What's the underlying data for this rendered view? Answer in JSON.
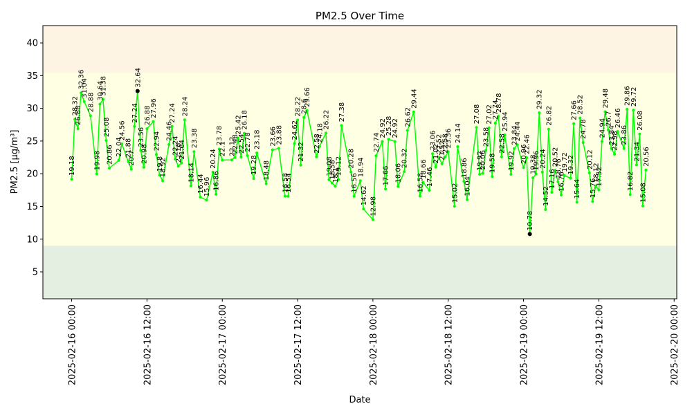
{
  "chart_data": {
    "type": "line",
    "title": "PM2.5 Over Time",
    "x_label": "Date",
    "y_label": "PM2.5 [µg/m³]",
    "x": [
      "2025-02-16 00:00",
      "2025-02-16 00:30",
      "2025-02-16 01:00",
      "2025-02-16 01:30",
      "2025-02-16 02:00",
      "2025-02-16 03:00",
      "2025-02-16 04:00",
      "2025-02-16 04:30",
      "2025-02-16 05:00",
      "2025-02-16 05:30",
      "2025-02-16 06:00",
      "2025-02-16 07:30",
      "2025-02-16 08:00",
      "2025-02-16 09:00",
      "2025-02-16 09:30",
      "2025-02-16 10:00",
      "2025-02-16 10:30",
      "2025-02-16 11:00",
      "2025-02-16 11:30",
      "2025-02-16 12:00",
      "2025-02-16 13:00",
      "2025-02-16 13:30",
      "2025-02-16 14:00",
      "2025-02-16 14:30",
      "2025-02-16 15:30",
      "2025-02-16 16:00",
      "2025-02-16 16:30",
      "2025-02-16 17:00",
      "2025-02-16 17:30",
      "2025-02-16 18:00",
      "2025-02-16 19:00",
      "2025-02-16 19:30",
      "2025-02-16 20:30",
      "2025-02-16 21:30",
      "2025-02-16 22:30",
      "2025-02-16 23:00",
      "2025-02-16 23:30",
      "2025-02-17 00:00",
      "2025-02-17 01:30",
      "2025-02-17 02:00",
      "2025-02-17 02:30",
      "2025-02-17 03:00",
      "2025-02-17 03:30",
      "2025-02-17 04:00",
      "2025-02-17 05:00",
      "2025-02-17 05:30",
      "2025-02-17 07:00",
      "2025-02-17 08:00",
      "2025-02-17 09:00",
      "2025-02-17 10:00",
      "2025-02-17 10:30",
      "2025-02-17 11:30",
      "2025-02-17 12:00",
      "2025-02-17 12:30",
      "2025-02-17 13:00",
      "2025-02-17 13:30",
      "2025-02-17 15:00",
      "2025-02-17 15:30",
      "2025-02-17 16:30",
      "2025-02-17 17:00",
      "2025-02-17 17:30",
      "2025-02-17 18:00",
      "2025-02-17 18:30",
      "2025-02-17 19:00",
      "2025-02-17 20:30",
      "2025-02-17 21:00",
      "2025-02-17 22:00",
      "2025-02-17 22:30",
      "2025-02-18 00:00",
      "2025-02-18 00:30",
      "2025-02-18 01:30",
      "2025-02-18 02:00",
      "2025-02-18 02:30",
      "2025-02-18 03:30",
      "2025-02-18 04:00",
      "2025-02-18 05:00",
      "2025-02-18 05:30",
      "2025-02-18 06:30",
      "2025-02-18 07:30",
      "2025-02-18 08:00",
      "2025-02-18 09:00",
      "2025-02-18 09:30",
      "2025-02-18 10:00",
      "2025-02-18 10:30",
      "2025-02-18 11:00",
      "2025-02-18 11:30",
      "2025-02-18 12:00",
      "2025-02-18 13:00",
      "2025-02-18 13:30",
      "2025-02-18 14:30",
      "2025-02-18 15:00",
      "2025-02-18 16:30",
      "2025-02-18 17:00",
      "2025-02-18 17:30",
      "2025-02-18 18:00",
      "2025-02-18 18:30",
      "2025-02-18 19:00",
      "2025-02-18 19:30",
      "2025-02-18 20:00",
      "2025-02-18 20:30",
      "2025-02-18 21:00",
      "2025-02-18 22:00",
      "2025-02-18 22:30",
      "2025-02-18 23:00",
      "2025-02-19 00:00",
      "2025-02-19 00:30",
      "2025-02-19 01:00",
      "2025-02-19 01:30",
      "2025-02-19 02:00",
      "2025-02-19 02:30",
      "2025-02-19 03:00",
      "2025-02-19 03:30",
      "2025-02-19 04:00",
      "2025-02-19 04:30",
      "2025-02-19 05:00",
      "2025-02-19 05:30",
      "2025-02-19 06:00",
      "2025-02-19 06:30",
      "2025-02-19 07:30",
      "2025-02-19 08:00",
      "2025-02-19 08:30",
      "2025-02-19 09:00",
      "2025-02-19 09:30",
      "2025-02-19 10:30",
      "2025-02-19 11:00",
      "2025-02-19 11:30",
      "2025-02-19 12:00",
      "2025-02-19 12:30",
      "2025-02-19 13:00",
      "2025-02-19 13:30",
      "2025-02-19 14:00",
      "2025-02-19 14:30",
      "2025-02-19 15:00",
      "2025-02-19 16:00",
      "2025-02-19 16:30",
      "2025-02-19 17:00",
      "2025-02-19 17:30",
      "2025-02-19 18:00",
      "2025-02-19 18:30",
      "2025-02-19 19:00",
      "2025-02-19 19:30"
    ],
    "series": [
      {
        "name": "PM2.5",
        "color": "#00ff00",
        "values": [
          19.18,
          28.32,
          26.88,
          32.36,
          31.04,
          28.88,
          19.98,
          30.64,
          31.38,
          25.08,
          20.86,
          22.04,
          24.56,
          21.88,
          20.7,
          27.24,
          32.64,
          23.56,
          20.98,
          26.88,
          27.96,
          22.94,
          19.8,
          18.92,
          24.46,
          27.24,
          22.24,
          21.16,
          21.64,
          28.24,
          18.14,
          23.38,
          16.44,
          15.96,
          20.24,
          16.86,
          23.78,
          22.1,
          22.12,
          22.48,
          25.42,
          22.54,
          26.18,
          22.78,
          19.28,
          23.18,
          18.48,
          23.66,
          23.88,
          16.58,
          16.54,
          24.62,
          28.22,
          21.32,
          28.6,
          29.66,
          22.58,
          24.18,
          26.22,
          19.08,
          18.58,
          18.1,
          19.12,
          27.38,
          20.28,
          16.56,
          18.94,
          14.62,
          12.98,
          22.74,
          24.92,
          17.66,
          25.28,
          24.92,
          18.06,
          20.32,
          26.62,
          29.44,
          16.58,
          18.66,
          17.46,
          23.06,
          21.02,
          22.52,
          21.52,
          22.58,
          23.36,
          15.02,
          24.14,
          18.86,
          16.04,
          27.08,
          19.92,
          20.06,
          23.58,
          27.02,
          19.58,
          27.74,
          28.78,
          22.58,
          25.94,
          19.92,
          23.84,
          24.44,
          20.96,
          22.46,
          10.78,
          19.38,
          19.96,
          29.32,
          20.24,
          14.52,
          26.82,
          17.16,
          20.52,
          18.76,
          16.76,
          19.72,
          19.32,
          27.66,
          15.64,
          28.52,
          24.78,
          20.12,
          15.76,
          18.12,
          17.52,
          24.94,
          29.48,
          26.7,
          23.84,
          22.98,
          26.46,
          23.86,
          29.86,
          16.82,
          29.72,
          21.34,
          26.08,
          15.08,
          20.56
        ]
      }
    ],
    "extreme_color": "#000000",
    "mark_extremes": true,
    "xlim": [
      "2025-02-15 19:25",
      "2025-02-20 00:25"
    ],
    "xticks": [
      "2025-02-16 00:00",
      "2025-02-16 12:00",
      "2025-02-17 00:00",
      "2025-02-17 12:00",
      "2025-02-18 00:00",
      "2025-02-18 12:00",
      "2025-02-19 00:00",
      "2025-02-19 12:00",
      "2025-02-20 00:00"
    ],
    "ylim": [
      0.88,
      42.65
    ],
    "yticks": [
      5,
      10,
      15,
      20,
      25,
      30,
      35,
      40
    ],
    "bands": [
      {
        "from": 0,
        "to": 9,
        "color": "#e5efe1"
      },
      {
        "from": 9,
        "to": 35.4,
        "color": "#ffffe4"
      },
      {
        "from": 35.4,
        "to": 55.4,
        "color": "#fdf4e3"
      }
    ]
  }
}
